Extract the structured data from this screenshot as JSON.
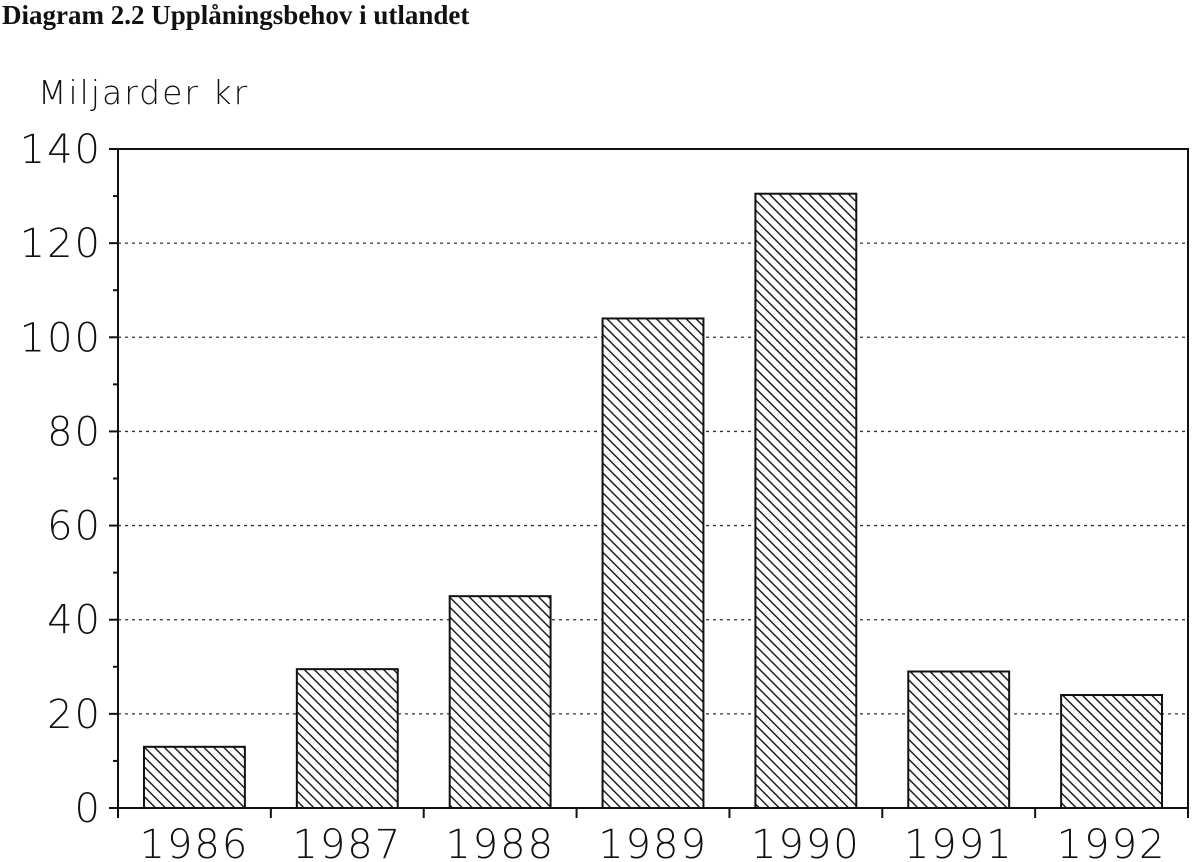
{
  "chart_data": {
    "type": "bar",
    "title": "Diagram 2.2 Upplåningsbehov i utlandet",
    "ylabel": "Miljarder kr",
    "xlabel": "",
    "categories": [
      "1986",
      "1987",
      "1988",
      "1989",
      "1990",
      "1991",
      "1992"
    ],
    "values": [
      13,
      29.5,
      45,
      104,
      130.5,
      29,
      24
    ],
    "ylim": [
      0,
      140
    ],
    "yticks": [
      "0",
      "20",
      "40",
      "60",
      "80",
      "100",
      "120",
      "140"
    ],
    "grid": "horizontal dotted",
    "bar_fill": "diagonal hatch",
    "colors": {
      "bar_stroke": "#111111",
      "hatch": "#222222",
      "grid": "#333333",
      "axis": "#111111"
    }
  }
}
